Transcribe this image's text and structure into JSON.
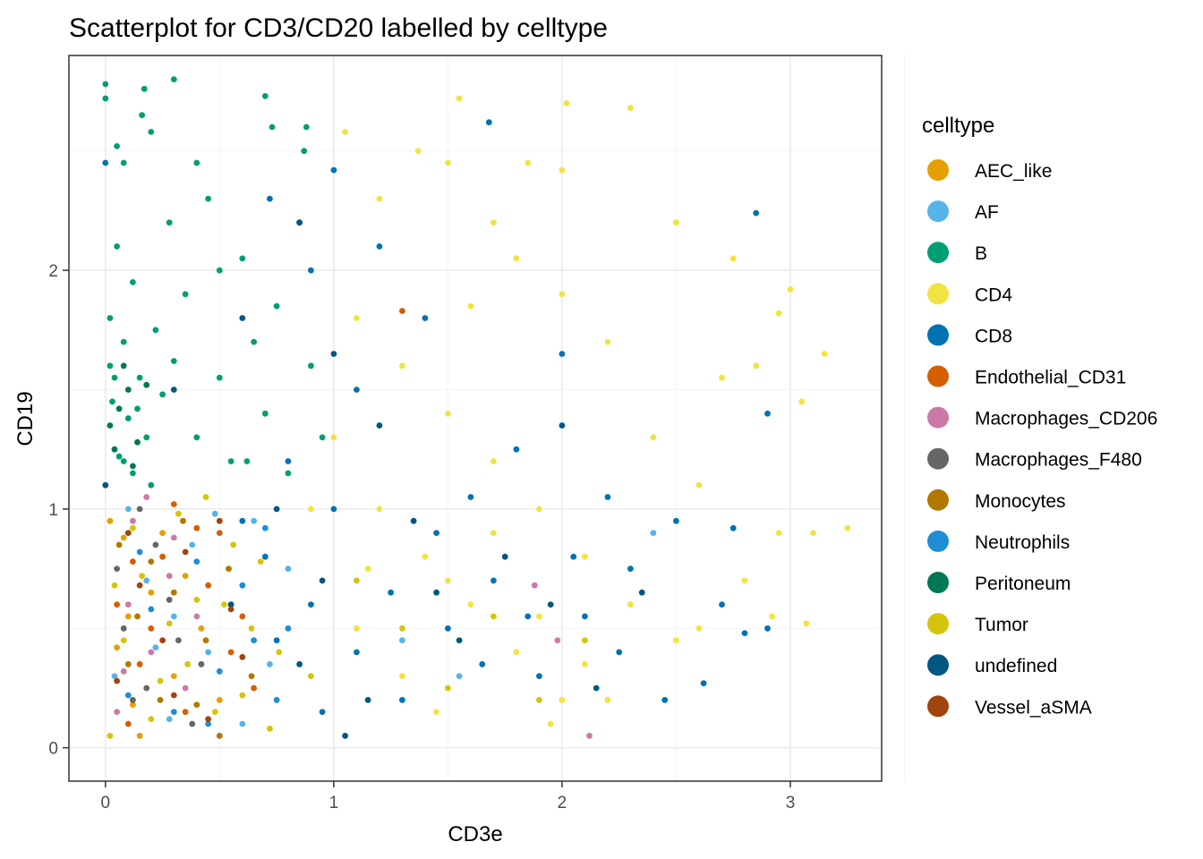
{
  "chart_data": {
    "type": "scatter",
    "title": "Scatterplot for CD3/CD20 labelled by celltype",
    "xlabel": "CD3e",
    "ylabel": "CD19",
    "xlim": [
      -0.16,
      3.4
    ],
    "ylim": [
      -0.14,
      2.9
    ],
    "x_ticks": [
      0,
      1,
      2,
      3
    ],
    "y_ticks": [
      0,
      1,
      2
    ],
    "grid": true,
    "legend": {
      "title": "celltype",
      "position": "right"
    },
    "series": [
      {
        "name": "AEC_like",
        "color": "#E69F00",
        "points": [
          [
            0.05,
            0.42
          ],
          [
            0.12,
            0.18
          ],
          [
            0.2,
            0.65
          ],
          [
            0.08,
            0.88
          ],
          [
            0.3,
            0.3
          ],
          [
            0.35,
            0.72
          ],
          [
            0.15,
            0.05
          ],
          [
            0.42,
            0.5
          ],
          [
            0.02,
            0.95
          ],
          [
            0.25,
            0.9
          ],
          [
            0.5,
            0.2
          ],
          [
            0.1,
            0.55
          ]
        ]
      },
      {
        "name": "AF",
        "color": "#56B4E9",
        "points": [
          [
            0.04,
            0.3
          ],
          [
            0.18,
            0.7
          ],
          [
            0.28,
            0.12
          ],
          [
            0.38,
            0.85
          ],
          [
            0.45,
            0.4
          ],
          [
            0.55,
            0.6
          ],
          [
            0.65,
            0.95
          ],
          [
            0.72,
            0.35
          ],
          [
            0.1,
            1.0
          ],
          [
            0.3,
            0.55
          ],
          [
            0.6,
            0.1
          ],
          [
            0.8,
            0.75
          ],
          [
            0.22,
            0.42
          ],
          [
            0.48,
            0.98
          ],
          [
            1.3,
            0.45
          ],
          [
            1.55,
            0.3
          ],
          [
            2.4,
            0.9
          ]
        ]
      },
      {
        "name": "B",
        "color": "#009E73",
        "points": [
          [
            0.0,
            2.78
          ],
          [
            0.0,
            2.72
          ],
          [
            0.05,
            2.52
          ],
          [
            0.08,
            2.45
          ],
          [
            0.17,
            2.76
          ],
          [
            0.3,
            2.8
          ],
          [
            0.16,
            2.65
          ],
          [
            0.2,
            2.58
          ],
          [
            0.7,
            2.73
          ],
          [
            0.73,
            2.6
          ],
          [
            0.88,
            2.6
          ],
          [
            0.87,
            2.5
          ],
          [
            0.05,
            2.1
          ],
          [
            0.12,
            1.95
          ],
          [
            0.02,
            1.8
          ],
          [
            0.08,
            1.7
          ],
          [
            0.15,
            1.55
          ],
          [
            0.03,
            1.45
          ],
          [
            0.1,
            1.38
          ],
          [
            0.18,
            1.3
          ],
          [
            0.06,
            1.22
          ],
          [
            0.12,
            1.15
          ],
          [
            0.02,
            1.6
          ],
          [
            0.22,
            1.75
          ],
          [
            0.25,
            1.48
          ],
          [
            0.3,
            1.62
          ],
          [
            0.35,
            1.9
          ],
          [
            0.4,
            1.3
          ],
          [
            0.45,
            2.3
          ],
          [
            0.5,
            1.55
          ],
          [
            0.55,
            1.2
          ],
          [
            0.6,
            2.05
          ],
          [
            0.65,
            1.7
          ],
          [
            0.7,
            1.4
          ],
          [
            0.75,
            1.85
          ],
          [
            0.8,
            1.15
          ],
          [
            0.85,
            2.2
          ],
          [
            0.9,
            1.6
          ],
          [
            0.95,
            1.3
          ],
          [
            0.4,
            2.45
          ],
          [
            0.5,
            2.0
          ],
          [
            0.28,
            2.2
          ],
          [
            0.62,
            1.2
          ],
          [
            0.08,
            1.2
          ],
          [
            0.14,
            1.42
          ],
          [
            0.04,
            1.55
          ],
          [
            0.2,
            1.1
          ]
        ]
      },
      {
        "name": "CD4",
        "color": "#F0E442",
        "points": [
          [
            1.55,
            2.72
          ],
          [
            2.02,
            2.7
          ],
          [
            2.3,
            2.68
          ],
          [
            1.05,
            2.58
          ],
          [
            1.37,
            2.5
          ],
          [
            1.5,
            2.45
          ],
          [
            1.85,
            2.45
          ],
          [
            2.0,
            2.42
          ],
          [
            1.2,
            2.3
          ],
          [
            1.7,
            2.2
          ],
          [
            2.5,
            2.2
          ],
          [
            2.75,
            2.05
          ],
          [
            3.0,
            1.92
          ],
          [
            2.95,
            1.82
          ],
          [
            3.15,
            1.65
          ],
          [
            2.85,
            1.6
          ],
          [
            3.05,
            1.45
          ],
          [
            3.25,
            0.92
          ],
          [
            3.1,
            0.9
          ],
          [
            2.95,
            0.9
          ],
          [
            3.07,
            0.52
          ],
          [
            2.92,
            0.55
          ],
          [
            1.1,
            1.8
          ],
          [
            1.3,
            1.6
          ],
          [
            1.5,
            1.4
          ],
          [
            1.7,
            1.2
          ],
          [
            1.9,
            1.0
          ],
          [
            2.1,
            0.8
          ],
          [
            2.3,
            0.6
          ],
          [
            1.2,
            1.0
          ],
          [
            1.4,
            0.8
          ],
          [
            1.6,
            0.6
          ],
          [
            1.8,
            0.4
          ],
          [
            2.0,
            0.2
          ],
          [
            1.1,
            0.5
          ],
          [
            1.3,
            0.3
          ],
          [
            1.5,
            0.7
          ],
          [
            1.7,
            0.9
          ],
          [
            1.9,
            0.55
          ],
          [
            2.1,
            0.35
          ],
          [
            2.4,
            1.3
          ],
          [
            2.6,
            1.1
          ],
          [
            2.2,
            1.7
          ],
          [
            2.0,
            1.9
          ],
          [
            1.8,
            2.05
          ],
          [
            1.6,
            1.85
          ],
          [
            2.7,
            1.55
          ],
          [
            2.5,
            0.45
          ],
          [
            2.2,
            0.2
          ],
          [
            1.0,
            1.3
          ],
          [
            1.15,
            0.75
          ],
          [
            1.45,
            0.15
          ],
          [
            1.95,
            0.1
          ],
          [
            2.6,
            0.5
          ],
          [
            2.8,
            0.7
          ],
          [
            0.9,
            1.0
          ]
        ]
      },
      {
        "name": "CD8",
        "color": "#0072B2",
        "points": [
          [
            1.68,
            2.62
          ],
          [
            2.85,
            2.24
          ],
          [
            0.0,
            2.45
          ],
          [
            1.0,
            2.42
          ],
          [
            0.72,
            2.3
          ],
          [
            0.9,
            2.0
          ],
          [
            1.2,
            2.1
          ],
          [
            1.4,
            1.8
          ],
          [
            1.1,
            1.5
          ],
          [
            0.8,
            1.2
          ],
          [
            1.0,
            1.0
          ],
          [
            0.7,
            0.8
          ],
          [
            0.9,
            0.6
          ],
          [
            1.1,
            0.4
          ],
          [
            1.3,
            0.2
          ],
          [
            1.5,
            0.5
          ],
          [
            1.7,
            0.7
          ],
          [
            1.9,
            0.3
          ],
          [
            2.1,
            0.55
          ],
          [
            2.3,
            0.75
          ],
          [
            2.5,
            0.95
          ],
          [
            2.7,
            0.6
          ],
          [
            2.9,
            1.4
          ],
          [
            2.9,
            0.5
          ],
          [
            2.8,
            0.48
          ],
          [
            2.62,
            0.27
          ],
          [
            0.6,
            0.95
          ],
          [
            0.75,
            0.45
          ],
          [
            0.95,
            0.15
          ],
          [
            1.25,
            0.65
          ],
          [
            1.45,
            0.9
          ],
          [
            1.65,
            0.35
          ],
          [
            1.85,
            0.55
          ],
          [
            2.05,
            0.8
          ],
          [
            2.25,
            0.4
          ],
          [
            2.45,
            0.2
          ],
          [
            1.8,
            1.25
          ],
          [
            2.0,
            1.65
          ],
          [
            2.2,
            1.05
          ],
          [
            1.6,
            1.05
          ],
          [
            2.75,
            0.92
          ]
        ]
      },
      {
        "name": "Endothelial_CD31",
        "color": "#D55E00",
        "points": [
          [
            0.05,
            0.6
          ],
          [
            0.15,
            0.35
          ],
          [
            0.25,
            0.8
          ],
          [
            0.35,
            0.15
          ],
          [
            0.45,
            0.68
          ],
          [
            0.55,
            0.4
          ],
          [
            0.1,
            0.1
          ],
          [
            0.3,
            1.02
          ],
          [
            0.5,
            0.9
          ],
          [
            0.65,
            0.25
          ],
          [
            0.2,
            0.5
          ],
          [
            0.4,
            0.92
          ],
          [
            1.3,
            1.83
          ],
          [
            0.12,
            0.78
          ],
          [
            0.6,
            0.55
          ]
        ]
      },
      {
        "name": "Macrophages_CD206",
        "color": "#CC79A7",
        "points": [
          [
            0.05,
            0.15
          ],
          [
            0.12,
            0.95
          ],
          [
            0.2,
            0.4
          ],
          [
            0.28,
            0.72
          ],
          [
            0.35,
            0.25
          ],
          [
            0.1,
            0.6
          ],
          [
            0.18,
            1.05
          ],
          [
            0.4,
            0.55
          ],
          [
            0.08,
            0.32
          ],
          [
            0.3,
            0.88
          ],
          [
            1.88,
            0.68
          ],
          [
            1.98,
            0.45
          ],
          [
            2.12,
            0.05
          ]
        ]
      },
      {
        "name": "Macrophages_F480",
        "color": "#666666",
        "points": [
          [
            0.08,
            0.5
          ],
          [
            0.18,
            0.25
          ],
          [
            0.22,
            0.85
          ],
          [
            0.32,
            0.45
          ],
          [
            0.05,
            0.75
          ],
          [
            0.15,
            1.0
          ],
          [
            0.38,
            0.1
          ],
          [
            0.28,
            0.62
          ],
          [
            0.42,
            0.35
          ],
          [
            0.12,
            0.2
          ]
        ]
      },
      {
        "name": "Monocytes",
        "color": "#B07800",
        "points": [
          [
            0.06,
            0.85
          ],
          [
            0.14,
            0.55
          ],
          [
            0.24,
            0.2
          ],
          [
            0.34,
            0.95
          ],
          [
            0.44,
            0.45
          ],
          [
            0.54,
            0.75
          ],
          [
            0.64,
            0.3
          ],
          [
            0.1,
            0.35
          ],
          [
            0.3,
            0.65
          ],
          [
            0.5,
            0.05
          ],
          [
            0.2,
            0.78
          ],
          [
            0.4,
            0.18
          ]
        ]
      },
      {
        "name": "Neutrophils",
        "color": "#1F8DD6",
        "points": [
          [
            0.1,
            0.22
          ],
          [
            0.2,
            0.58
          ],
          [
            0.3,
            0.15
          ],
          [
            0.4,
            0.78
          ],
          [
            0.5,
            0.32
          ],
          [
            0.6,
            0.68
          ],
          [
            0.7,
            0.92
          ],
          [
            0.8,
            0.5
          ],
          [
            0.15,
            0.82
          ],
          [
            0.45,
            0.1
          ],
          [
            0.65,
            0.45
          ],
          [
            0.75,
            0.2
          ]
        ]
      },
      {
        "name": "Peritoneum",
        "color": "#007756",
        "points": [
          [
            0.04,
            1.25
          ],
          [
            0.1,
            1.5
          ],
          [
            0.02,
            1.35
          ],
          [
            0.08,
            1.6
          ],
          [
            0.14,
            1.28
          ],
          [
            0.06,
            1.42
          ],
          [
            0.12,
            1.18
          ],
          [
            0.18,
            1.52
          ]
        ]
      },
      {
        "name": "Tumor",
        "color": "#D4C40D",
        "points": [
          [
            0.02,
            0.05
          ],
          [
            0.08,
            0.45
          ],
          [
            0.16,
            0.72
          ],
          [
            0.24,
            0.28
          ],
          [
            0.32,
            0.98
          ],
          [
            0.4,
            0.62
          ],
          [
            0.48,
            0.15
          ],
          [
            0.56,
            0.85
          ],
          [
            0.64,
            0.5
          ],
          [
            0.72,
            0.08
          ],
          [
            0.04,
            0.68
          ],
          [
            0.12,
            0.92
          ],
          [
            0.2,
            0.12
          ],
          [
            0.28,
            0.52
          ],
          [
            0.36,
            0.35
          ],
          [
            0.44,
            1.05
          ],
          [
            0.52,
            0.6
          ],
          [
            0.6,
            0.22
          ],
          [
            0.68,
            0.78
          ],
          [
            0.76,
            0.4
          ],
          [
            0.9,
            0.3
          ],
          [
            1.1,
            0.7
          ],
          [
            1.3,
            0.5
          ],
          [
            1.5,
            0.25
          ],
          [
            1.7,
            0.55
          ],
          [
            1.9,
            0.2
          ],
          [
            2.1,
            0.45
          ]
        ]
      },
      {
        "name": "undefined",
        "color": "#00577F",
        "points": [
          [
            0.0,
            1.1
          ],
          [
            0.3,
            1.5
          ],
          [
            0.6,
            1.8
          ],
          [
            0.85,
            2.2
          ],
          [
            1.0,
            1.65
          ],
          [
            1.2,
            1.35
          ],
          [
            0.75,
            1.0
          ],
          [
            0.95,
            0.7
          ],
          [
            1.15,
            0.2
          ],
          [
            1.35,
            0.95
          ],
          [
            1.55,
            0.45
          ],
          [
            1.75,
            0.8
          ],
          [
            1.95,
            0.6
          ],
          [
            2.15,
            0.25
          ],
          [
            2.35,
            0.65
          ],
          [
            0.55,
            0.6
          ],
          [
            1.05,
            0.05
          ],
          [
            1.45,
            0.65
          ],
          [
            2.0,
            1.35
          ],
          [
            0.85,
            0.35
          ]
        ]
      },
      {
        "name": "Vessel_aSMA",
        "color": "#A0450D",
        "points": [
          [
            0.05,
            0.28
          ],
          [
            0.15,
            0.68
          ],
          [
            0.25,
            0.45
          ],
          [
            0.35,
            0.82
          ],
          [
            0.45,
            0.12
          ],
          [
            0.55,
            0.58
          ],
          [
            0.1,
            0.9
          ],
          [
            0.3,
            0.22
          ],
          [
            0.5,
            0.95
          ],
          [
            0.6,
            0.38
          ]
        ]
      }
    ]
  }
}
